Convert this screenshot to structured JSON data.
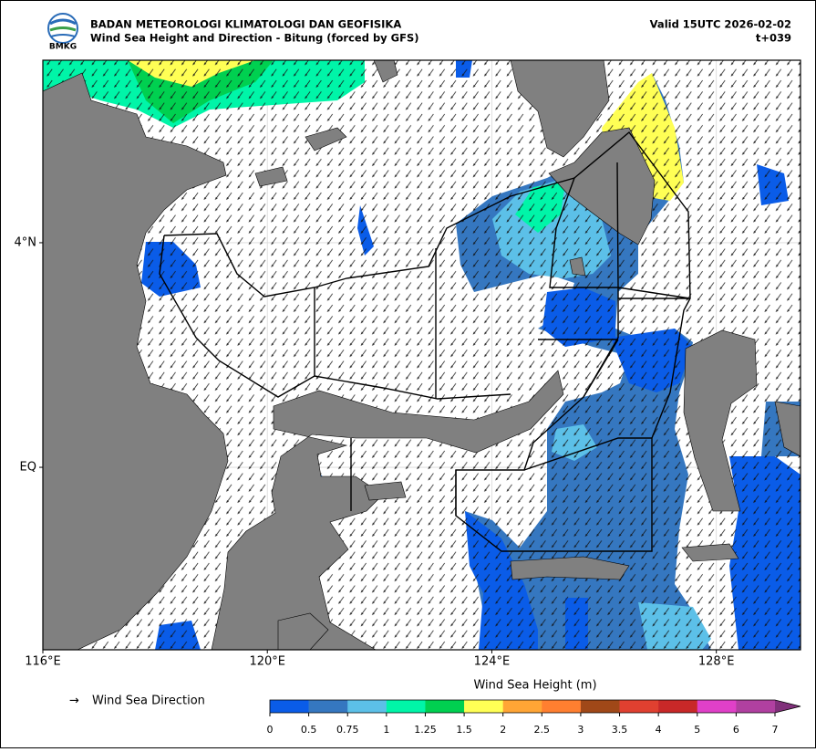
{
  "header": {
    "agency": "BADAN METEOROLOGI KLIMATOLOGI DAN GEOFISIKA",
    "title": "Wind Sea Height and Direction - Bitung (forced by GFS)",
    "valid": "Valid 15UTC 2026-02-02",
    "lead": "t+039",
    "logo": "BMKG"
  },
  "map": {
    "xlim": [
      116,
      129.5
    ],
    "ylim": [
      -3.25,
      7.25
    ],
    "xticks": [
      {
        "value": 116,
        "label": "116°E"
      },
      {
        "value": 120,
        "label": "120°E"
      },
      {
        "value": 124,
        "label": "124°E"
      },
      {
        "value": 128,
        "label": "128°E"
      }
    ],
    "yticks": [
      {
        "value": 0,
        "label": "EQ"
      },
      {
        "value": 4,
        "label": "4°N"
      }
    ],
    "grid": true
  },
  "legend": {
    "symbol": "→",
    "label": "Wind Sea Direction"
  },
  "colorbar": {
    "label": "Wind Sea Height (m)",
    "ticks": [
      0,
      0.5,
      0.75,
      1,
      1.25,
      1.5,
      2,
      2.5,
      3,
      3.5,
      4,
      5,
      6,
      7
    ],
    "colors": [
      "#0a5ce8",
      "#3577c0",
      "#5cc0e8",
      "#00f5a8",
      "#00d050",
      "#ffff55",
      "#ffa535",
      "#ff7f30",
      "#a04818",
      "#e04030",
      "#c82828",
      "#e040c8",
      "#b040a0"
    ],
    "extend_color": "#80307a"
  }
}
